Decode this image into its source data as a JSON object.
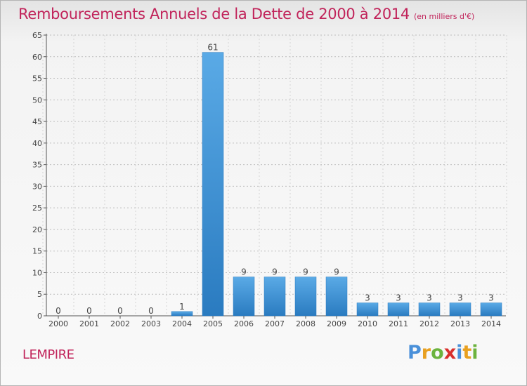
{
  "title": "Remboursements Annuels de la Dette de 2000 à 2014",
  "unit": "(en milliers d'€)",
  "commune": "LEMPIRE",
  "logo": {
    "text": "Proxiti",
    "letters": [
      {
        "ch": "P",
        "color": "#4a90d9"
      },
      {
        "ch": "r",
        "color": "#e8a020"
      },
      {
        "ch": "o",
        "color": "#6cb33e"
      },
      {
        "ch": "x",
        "color": "#d9302c"
      },
      {
        "ch": "i",
        "color": "#4a90d9"
      },
      {
        "ch": "t",
        "color": "#e8a020"
      },
      {
        "ch": "i",
        "color": "#6cb33e"
      }
    ]
  },
  "colors": {
    "title": "#c1235a",
    "bar_light": "#5aaae6",
    "bar_dark": "#2a7bc0",
    "grid": "#bdbdbd"
  },
  "chart_data": {
    "type": "bar",
    "categories": [
      "2000",
      "2001",
      "2002",
      "2003",
      "2004",
      "2005",
      "2006",
      "2007",
      "2008",
      "2009",
      "2010",
      "2011",
      "2012",
      "2013",
      "2014"
    ],
    "values": [
      0,
      0,
      0,
      0,
      1,
      61,
      9,
      9,
      9,
      9,
      3,
      3,
      3,
      3,
      3
    ],
    "ylim": [
      0,
      65
    ],
    "yticks": [
      0,
      5,
      10,
      15,
      20,
      25,
      30,
      35,
      40,
      45,
      50,
      55,
      60,
      65
    ],
    "grid": "horizontal dashed"
  }
}
